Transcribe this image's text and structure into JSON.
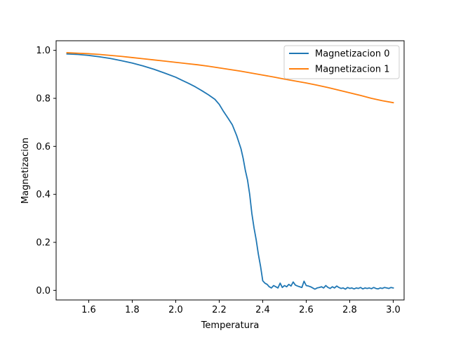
{
  "chart_data": {
    "type": "line",
    "title": "",
    "xlabel": "Temperatura",
    "ylabel": "Magnetizacion",
    "xlim": [
      1.45,
      3.05
    ],
    "ylim": [
      -0.04,
      1.04
    ],
    "xticks": [
      1.6,
      1.8,
      2.0,
      2.2,
      2.4,
      2.6,
      2.8,
      3.0
    ],
    "xtick_labels": [
      "1.6",
      "1.8",
      "2.0",
      "2.2",
      "2.4",
      "2.6",
      "2.8",
      "3.0"
    ],
    "yticks": [
      0.0,
      0.2,
      0.4,
      0.6,
      0.8,
      1.0
    ],
    "ytick_labels": [
      "0.0",
      "0.2",
      "0.4",
      "0.6",
      "0.8",
      "1.0"
    ],
    "grid": false,
    "legend_position": "upper right",
    "series": [
      {
        "name": "Magnetizacion 0",
        "color": "#1f77b4",
        "x": [
          1.5,
          1.55,
          1.6,
          1.65,
          1.7,
          1.75,
          1.8,
          1.85,
          1.9,
          1.95,
          2.0,
          2.03,
          2.06,
          2.09,
          2.12,
          2.15,
          2.18,
          2.2,
          2.22,
          2.24,
          2.26,
          2.28,
          2.3,
          2.31,
          2.32,
          2.33,
          2.34,
          2.35,
          2.36,
          2.37,
          2.38,
          2.39,
          2.4,
          2.41,
          2.42,
          2.43,
          2.44,
          2.45,
          2.46,
          2.47,
          2.48,
          2.49,
          2.5,
          2.51,
          2.52,
          2.53,
          2.54,
          2.55,
          2.56,
          2.57,
          2.58,
          2.59,
          2.6,
          2.61,
          2.62,
          2.63,
          2.64,
          2.65,
          2.66,
          2.67,
          2.68,
          2.69,
          2.7,
          2.71,
          2.72,
          2.73,
          2.74,
          2.75,
          2.76,
          2.77,
          2.78,
          2.79,
          2.8,
          2.81,
          2.82,
          2.83,
          2.84,
          2.85,
          2.86,
          2.87,
          2.88,
          2.89,
          2.9,
          2.91,
          2.92,
          2.93,
          2.94,
          2.95,
          2.96,
          2.97,
          2.98,
          2.99,
          3.0
        ],
        "y": [
          0.985,
          0.983,
          0.979,
          0.973,
          0.966,
          0.957,
          0.947,
          0.935,
          0.921,
          0.905,
          0.888,
          0.875,
          0.862,
          0.848,
          0.832,
          0.815,
          0.796,
          0.775,
          0.745,
          0.718,
          0.69,
          0.645,
          0.59,
          0.55,
          0.5,
          0.46,
          0.4,
          0.32,
          0.26,
          0.21,
          0.15,
          0.1,
          0.04,
          0.03,
          0.025,
          0.015,
          0.01,
          0.02,
          0.015,
          0.01,
          0.03,
          0.012,
          0.02,
          0.015,
          0.025,
          0.018,
          0.035,
          0.022,
          0.018,
          0.015,
          0.012,
          0.038,
          0.02,
          0.018,
          0.015,
          0.01,
          0.005,
          0.01,
          0.012,
          0.015,
          0.01,
          0.02,
          0.012,
          0.008,
          0.015,
          0.01,
          0.018,
          0.012,
          0.008,
          0.01,
          0.005,
          0.012,
          0.008,
          0.01,
          0.006,
          0.01,
          0.008,
          0.012,
          0.006,
          0.01,
          0.008,
          0.01,
          0.007,
          0.012,
          0.008,
          0.006,
          0.01,
          0.008,
          0.012,
          0.01,
          0.008,
          0.012,
          0.01
        ]
      },
      {
        "name": "Magnetizacion 1",
        "color": "#ff7f0e",
        "x": [
          1.5,
          1.55,
          1.6,
          1.65,
          1.7,
          1.75,
          1.8,
          1.85,
          1.9,
          1.95,
          2.0,
          2.05,
          2.1,
          2.15,
          2.2,
          2.25,
          2.3,
          2.35,
          2.4,
          2.45,
          2.5,
          2.55,
          2.6,
          2.65,
          2.7,
          2.75,
          2.8,
          2.85,
          2.9,
          2.95,
          3.0
        ],
        "y": [
          0.99,
          0.988,
          0.986,
          0.983,
          0.979,
          0.975,
          0.97,
          0.965,
          0.96,
          0.955,
          0.95,
          0.945,
          0.94,
          0.934,
          0.927,
          0.92,
          0.913,
          0.905,
          0.897,
          0.889,
          0.88,
          0.872,
          0.864,
          0.855,
          0.845,
          0.834,
          0.823,
          0.812,
          0.8,
          0.79,
          0.782
        ]
      }
    ]
  }
}
